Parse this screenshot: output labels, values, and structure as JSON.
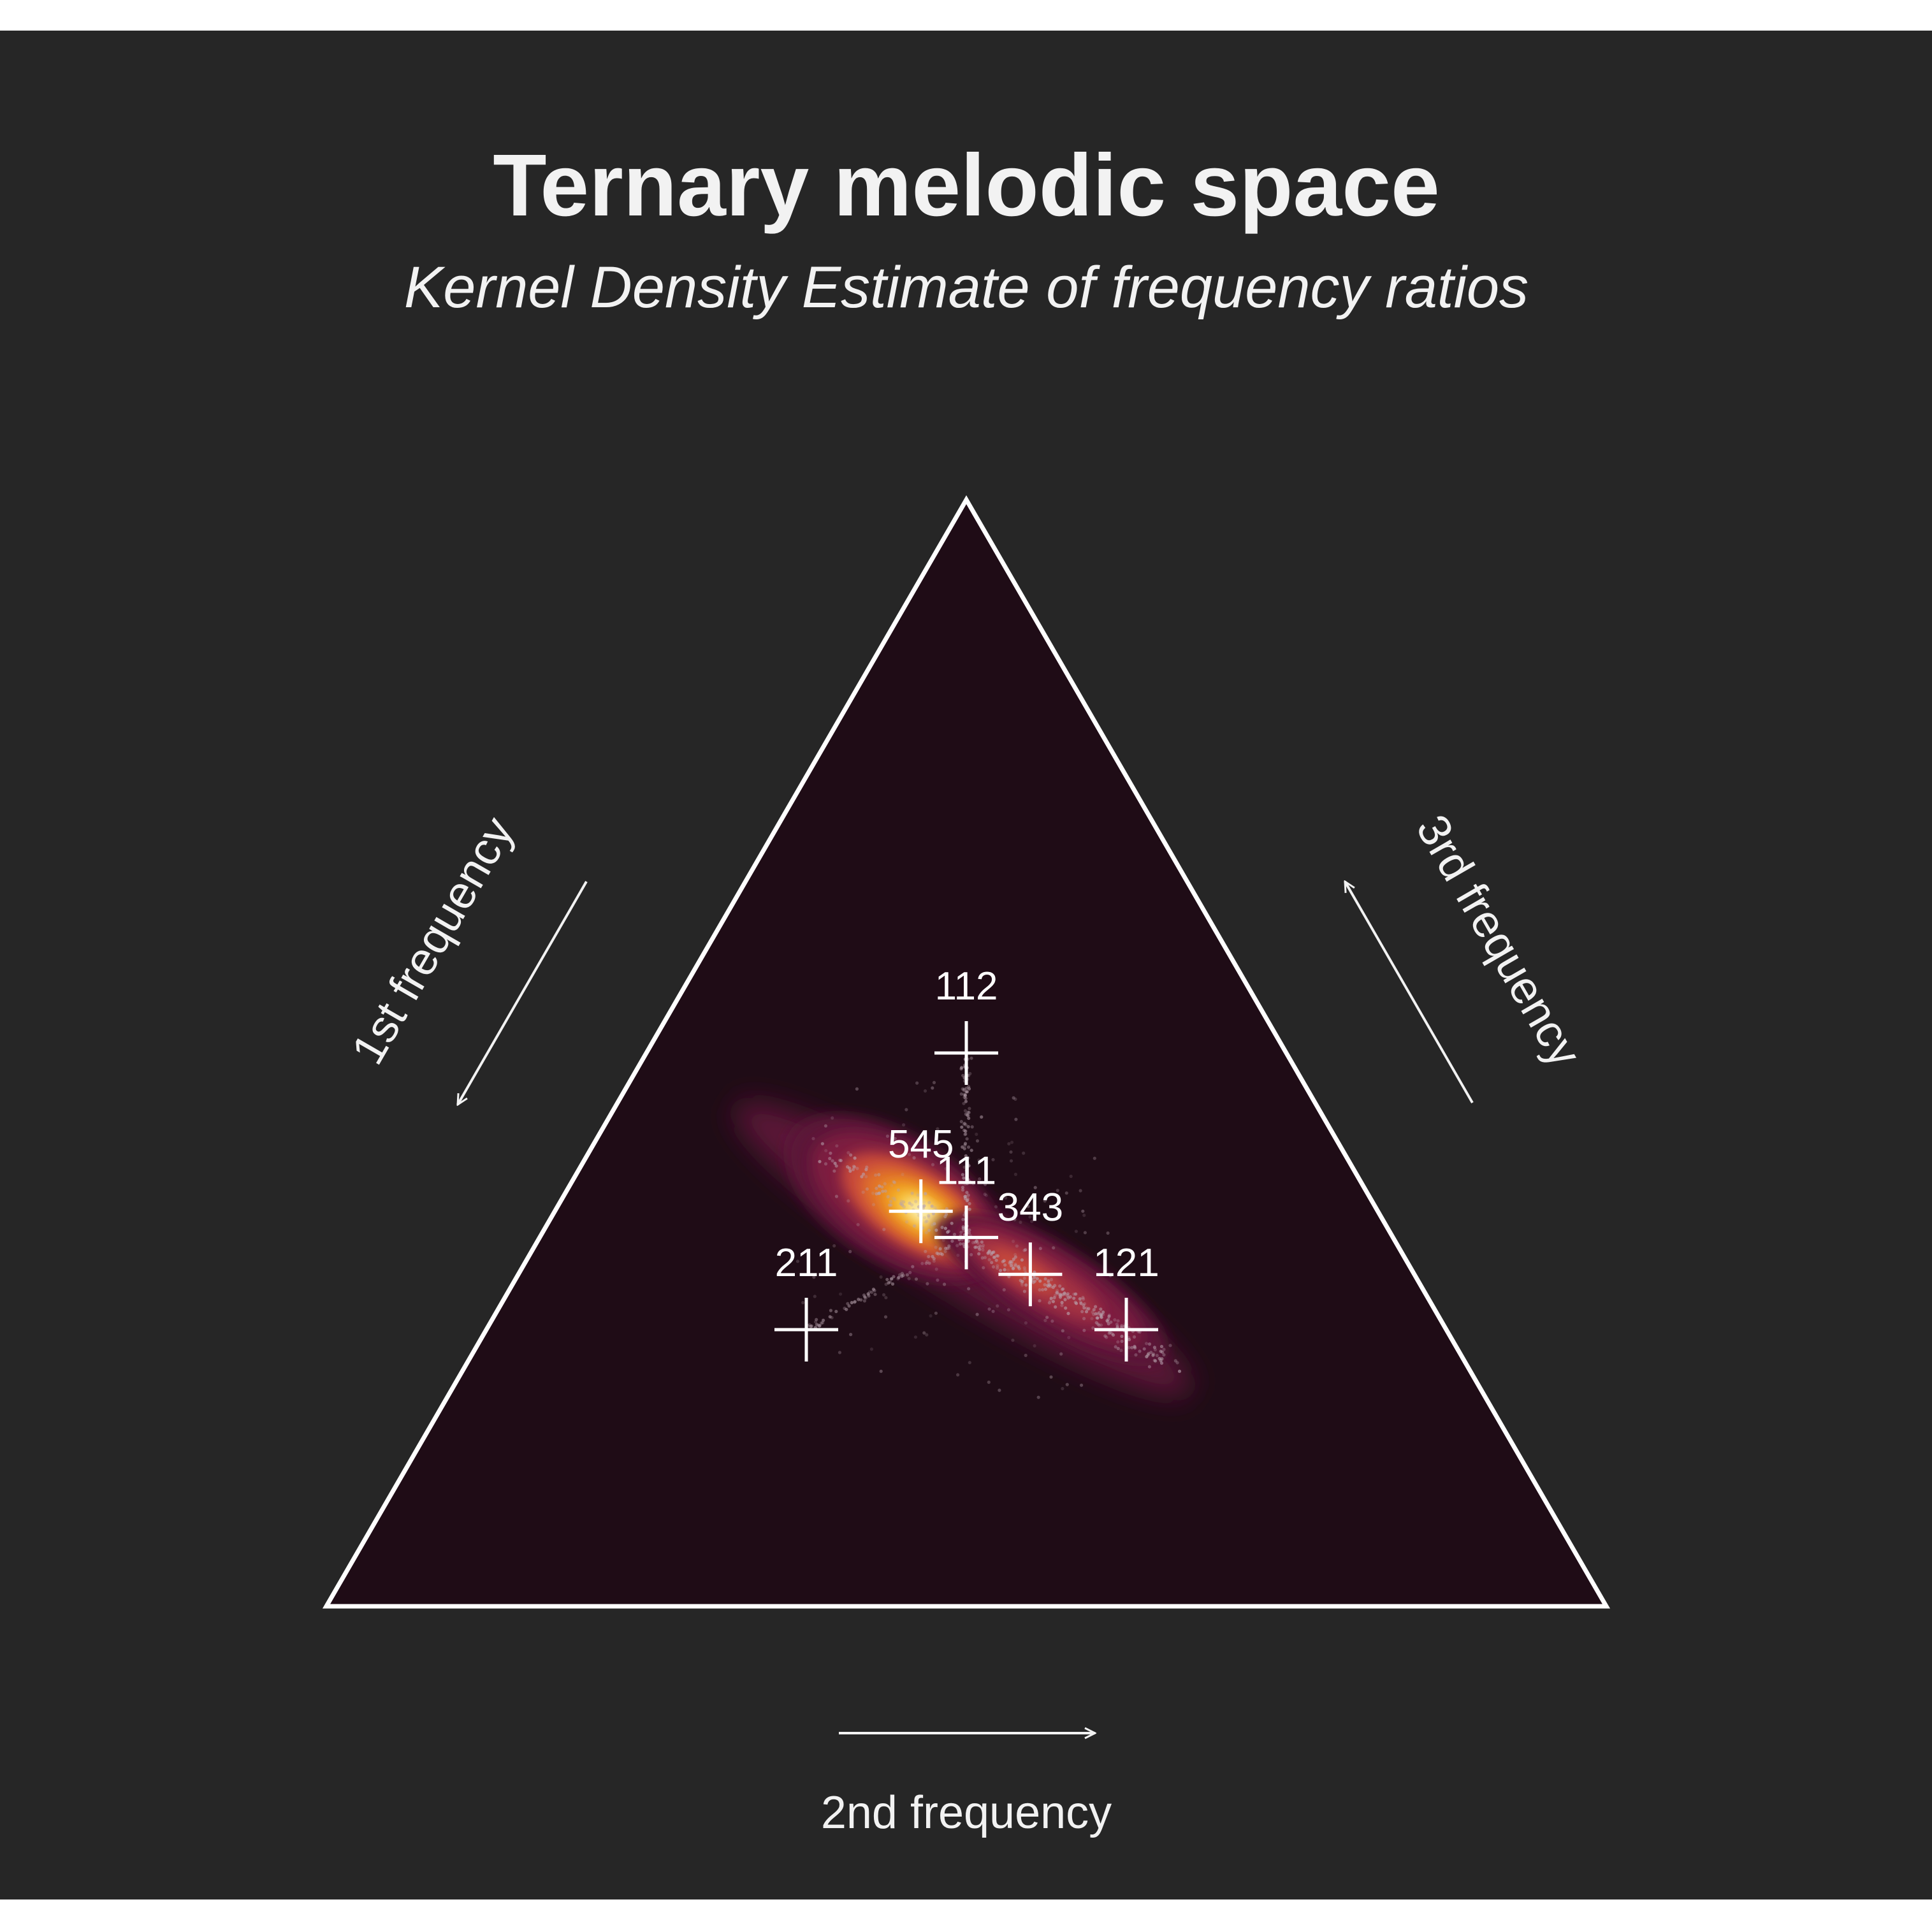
{
  "chart_data": {
    "type": "ternary-density",
    "title": "Ternary melodic space",
    "subtitle": "Kernel Density Estimate of frequency ratios",
    "axes": {
      "left": "1st frequency",
      "bottom": "2nd frequency",
      "right": "3rd frequency"
    },
    "colors": {
      "background": "#262626",
      "plot_fill": "#1f0c16",
      "outline": "#ffffff",
      "density_palette": [
        "#1f0c16",
        "#3b0f2c",
        "#5c1637",
        "#7d1d3f",
        "#a33243",
        "#c84a3a",
        "#e0712b",
        "#ef9a1d",
        "#f7c53c",
        "#fcf3c0"
      ]
    },
    "reference_points": [
      {
        "label": "112",
        "a": 0.25,
        "b": 0.25,
        "c": 0.5
      },
      {
        "label": "211",
        "a": 0.5,
        "b": 0.25,
        "c": 0.25
      },
      {
        "label": "121",
        "a": 0.25,
        "b": 0.5,
        "c": 0.25
      },
      {
        "label": "111",
        "a": 0.333,
        "b": 0.333,
        "c": 0.333
      },
      {
        "label": "545",
        "a": 0.357,
        "b": 0.286,
        "c": 0.357
      },
      {
        "label": "343",
        "a": 0.3,
        "b": 0.4,
        "c": 0.3
      }
    ],
    "density_peaks": [
      {
        "near": "545",
        "relative_density": 1.0
      },
      {
        "near": "343",
        "relative_density": 0.45
      }
    ]
  }
}
